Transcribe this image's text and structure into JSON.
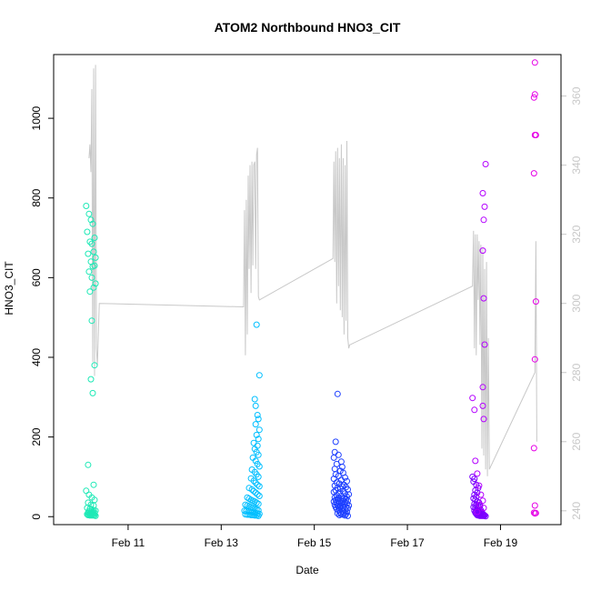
{
  "chart_data": {
    "type": "scatter",
    "title": "ATOM2 Northbound HNO3_CIT",
    "xlabel": "Date",
    "ylabel": "HNO3_CIT",
    "x_unit": "days since Feb 10 00:00",
    "xlim": [
      -0.6,
      10.3
    ],
    "ylim": [
      -20,
      1160
    ],
    "y2lim": [
      236,
      372
    ],
    "x_ticks": [
      {
        "x": 1,
        "label": "Feb 11"
      },
      {
        "x": 3,
        "label": "Feb 13"
      },
      {
        "x": 5,
        "label": "Feb 15"
      },
      {
        "x": 7,
        "label": "Feb 17"
      },
      {
        "x": 9,
        "label": "Feb 19"
      }
    ],
    "y_ticks": [
      {
        "y": 0,
        "label": "0"
      },
      {
        "y": 200,
        "label": "200"
      },
      {
        "y": 400,
        "label": "400"
      },
      {
        "y": 600,
        "label": "600"
      },
      {
        "y": 800,
        "label": "800"
      },
      {
        "y": 1000,
        "label": "1000"
      }
    ],
    "y2_ticks": [
      {
        "y": 240,
        "label": "240"
      },
      {
        "y": 260,
        "label": "260"
      },
      {
        "y": 280,
        "label": "280"
      },
      {
        "y": 300,
        "label": "300"
      },
      {
        "y": 320,
        "label": "320"
      },
      {
        "y": 340,
        "label": "340"
      },
      {
        "y": 360,
        "label": "360"
      }
    ],
    "grid": false,
    "colors": {
      "axis": "#000000",
      "secondary_axis": "#c8c8c8",
      "background_line": "#c8c8c8"
    },
    "secondary_line": {
      "x": [
        0.16,
        0.18,
        0.2,
        0.22,
        0.24,
        0.26,
        0.28,
        0.3,
        0.32,
        0.34,
        0.38,
        3.48,
        3.5,
        3.52,
        3.54,
        3.56,
        3.58,
        3.6,
        3.62,
        3.64,
        3.66,
        3.68,
        3.7,
        3.72,
        3.74,
        3.76,
        3.78,
        3.8,
        3.82,
        5.4,
        5.42,
        5.44,
        5.46,
        5.48,
        5.5,
        5.52,
        5.54,
        5.56,
        5.58,
        5.6,
        5.62,
        5.64,
        5.66,
        5.68,
        5.7,
        5.72,
        5.74,
        5.76,
        8.4,
        8.42,
        8.44,
        8.46,
        8.48,
        8.5,
        8.52,
        8.54,
        8.56,
        8.58,
        8.6,
        8.62,
        8.64,
        8.66,
        8.68,
        8.7,
        8.72,
        8.74,
        8.76,
        9.74,
        9.76,
        9.78
      ],
      "y": [
        342,
        346,
        338,
        362,
        283,
        368,
        279,
        369,
        287,
        282,
        300,
        299,
        327,
        285,
        330,
        291,
        337,
        310,
        340,
        303,
        341,
        311,
        340,
        341,
        310,
        343,
        345,
        302,
        301,
        313,
        341,
        312,
        344,
        300,
        345,
        305,
        342,
        298,
        346,
        296,
        342,
        291,
        340,
        295,
        347,
        290,
        287,
        288,
        305,
        321,
        287,
        320,
        285,
        320,
        301,
        318,
        288,
        317,
        258,
        316,
        256,
        310,
        252,
        312,
        250,
        290,
        252,
        280,
        318,
        260
      ]
    },
    "series": [
      {
        "color": "#1de9b6",
        "x": [
          0.1,
          0.16,
          0.2,
          0.24,
          0.28,
          0.12,
          0.18,
          0.22,
          0.26,
          0.3,
          0.14,
          0.2,
          0.24,
          0.28,
          0.16,
          0.22,
          0.26,
          0.3,
          0.18,
          0.22,
          0.28,
          0.2,
          0.24,
          0.14,
          0.26,
          0.1,
          0.16,
          0.22,
          0.28,
          0.14,
          0.2,
          0.26,
          0.12,
          0.18,
          0.22,
          0.26,
          0.3,
          0.16,
          0.2,
          0.24,
          0.28,
          0.14,
          0.18,
          0.22,
          0.26,
          0.12,
          0.16,
          0.2,
          0.24,
          0.28,
          0.14,
          0.18,
          0.22,
          0.26,
          0.3
        ],
        "y": [
          780,
          760,
          745,
          735,
          700,
          715,
          690,
          685,
          665,
          650,
          660,
          640,
          628,
          630,
          615,
          600,
          575,
          585,
          565,
          492,
          380,
          345,
          310,
          130,
          80,
          65,
          55,
          48,
          42,
          35,
          30,
          28,
          22,
          20,
          18,
          16,
          15,
          14,
          12,
          12,
          10,
          10,
          8,
          8,
          7,
          6,
          6,
          5,
          5,
          4,
          4,
          3,
          3,
          3,
          2
        ]
      },
      {
        "color": "#00bfff",
        "x": [
          3.76,
          3.82,
          3.72,
          3.74,
          3.78,
          3.8,
          3.74,
          3.82,
          3.76,
          3.8,
          3.7,
          3.78,
          3.72,
          3.76,
          3.8,
          3.68,
          3.74,
          3.78,
          3.82,
          3.66,
          3.72,
          3.76,
          3.8,
          3.64,
          3.7,
          3.74,
          3.78,
          3.82,
          3.6,
          3.66,
          3.7,
          3.74,
          3.78,
          3.82,
          3.56,
          3.6,
          3.64,
          3.68,
          3.72,
          3.76,
          3.8,
          3.52,
          3.56,
          3.6,
          3.64,
          3.68,
          3.72,
          3.76,
          3.8,
          3.5,
          3.54,
          3.58,
          3.62,
          3.66,
          3.7,
          3.74,
          3.78,
          3.82,
          3.52,
          3.56,
          3.6,
          3.64,
          3.68,
          3.72,
          3.76,
          3.8
        ],
        "y": [
          482,
          355,
          295,
          278,
          255,
          245,
          232,
          218,
          205,
          195,
          185,
          178,
          170,
          162,
          155,
          148,
          140,
          132,
          126,
          118,
          112,
          106,
          100,
          96,
          90,
          85,
          80,
          76,
          72,
          68,
          64,
          60,
          56,
          52,
          48,
          45,
          42,
          40,
          38,
          35,
          32,
          30,
          28,
          26,
          24,
          22,
          20,
          18,
          16,
          15,
          14,
          13,
          12,
          11,
          10,
          9,
          8,
          7,
          6,
          5,
          5,
          4,
          4,
          3,
          3,
          2
        ]
      },
      {
        "color": "#1e40ff",
        "x": [
          5.5,
          5.46,
          5.44,
          5.52,
          5.42,
          5.58,
          5.48,
          5.6,
          5.44,
          5.56,
          5.62,
          5.46,
          5.52,
          5.66,
          5.42,
          5.58,
          5.7,
          5.48,
          5.54,
          5.64,
          5.44,
          5.6,
          5.68,
          5.5,
          5.56,
          5.72,
          5.46,
          5.62,
          5.42,
          5.54,
          5.66,
          5.74,
          5.48,
          5.58,
          5.7,
          5.44,
          5.52,
          5.64,
          5.6,
          5.5,
          5.68,
          5.46,
          5.56,
          5.72,
          5.62,
          5.42,
          5.54,
          5.66,
          5.48,
          5.58,
          5.7,
          5.52,
          5.64,
          5.44,
          5.6,
          5.74,
          5.5,
          5.56,
          5.68,
          5.46,
          5.62,
          5.54,
          5.72,
          5.58,
          5.48,
          5.66,
          5.52,
          5.6,
          5.7,
          5.56,
          5.64,
          5.5,
          5.68,
          5.58,
          5.62,
          5.54,
          5.66,
          5.72
        ],
        "y": [
          308,
          188,
          162,
          155,
          148,
          138,
          132,
          125,
          120,
          115,
          110,
          106,
          102,
          98,
          95,
          92,
          89,
          86,
          83,
          80,
          78,
          76,
          74,
          72,
          70,
          68,
          66,
          64,
          62,
          60,
          58,
          56,
          54,
          52,
          50,
          48,
          47,
          46,
          45,
          44,
          43,
          42,
          41,
          40,
          39,
          38,
          37,
          36,
          35,
          34,
          33,
          32,
          31,
          30,
          29,
          28,
          27,
          26,
          25,
          24,
          23,
          22,
          21,
          20,
          19,
          18,
          16,
          14,
          12,
          10,
          9,
          8,
          7,
          6,
          5,
          4,
          3,
          2
        ]
      },
      {
        "color": "#7b00ff",
        "x": [
          8.4,
          8.44,
          8.42,
          8.48,
          8.52,
          8.46,
          8.5,
          8.44,
          8.48,
          8.42,
          8.46,
          8.5,
          8.54,
          8.44,
          8.48,
          8.52,
          8.56,
          8.42,
          8.46,
          8.5,
          8.54,
          8.58,
          8.44,
          8.48,
          8.52,
          8.56,
          8.6,
          8.46,
          8.5,
          8.54,
          8.58,
          8.62,
          8.48,
          8.52,
          8.56,
          8.6,
          8.64,
          8.5,
          8.54,
          8.58,
          8.62,
          8.66,
          8.52,
          8.56,
          8.6,
          8.64,
          8.68
        ],
        "y": [
          100,
          95,
          88,
          80,
          72,
          66,
          60,
          55,
          50,
          46,
          42,
          38,
          35,
          32,
          30,
          28,
          26,
          24,
          22,
          20,
          18,
          16,
          15,
          14,
          13,
          12,
          11,
          10,
          9,
          8,
          8,
          7,
          7,
          6,
          6,
          5,
          5,
          4,
          4,
          4,
          3,
          3,
          3,
          2,
          2,
          2,
          1
        ]
      },
      {
        "color": "#b400ff",
        "x": [
          8.68,
          8.62,
          8.66,
          8.64,
          8.62,
          8.64,
          8.66,
          8.62,
          8.62,
          8.64,
          8.4,
          8.44,
          8.46,
          8.5,
          8.54,
          8.58,
          8.62,
          8.64,
          8.56,
          8.5
        ],
        "y": [
          885,
          812,
          778,
          745,
          668,
          548,
          432,
          325,
          278,
          245,
          298,
          268,
          140,
          108,
          78,
          55,
          40,
          22,
          30,
          12
        ]
      },
      {
        "color": "#e600e6",
        "x": [
          9.74,
          9.74,
          9.72,
          9.76,
          9.74,
          9.72,
          9.76,
          9.74,
          9.72,
          9.74,
          9.72,
          9.76,
          9.74
        ],
        "y": [
          1140,
          1060,
          1052,
          958,
          958,
          862,
          540,
          395,
          172,
          28,
          10,
          9,
          8
        ]
      }
    ]
  }
}
